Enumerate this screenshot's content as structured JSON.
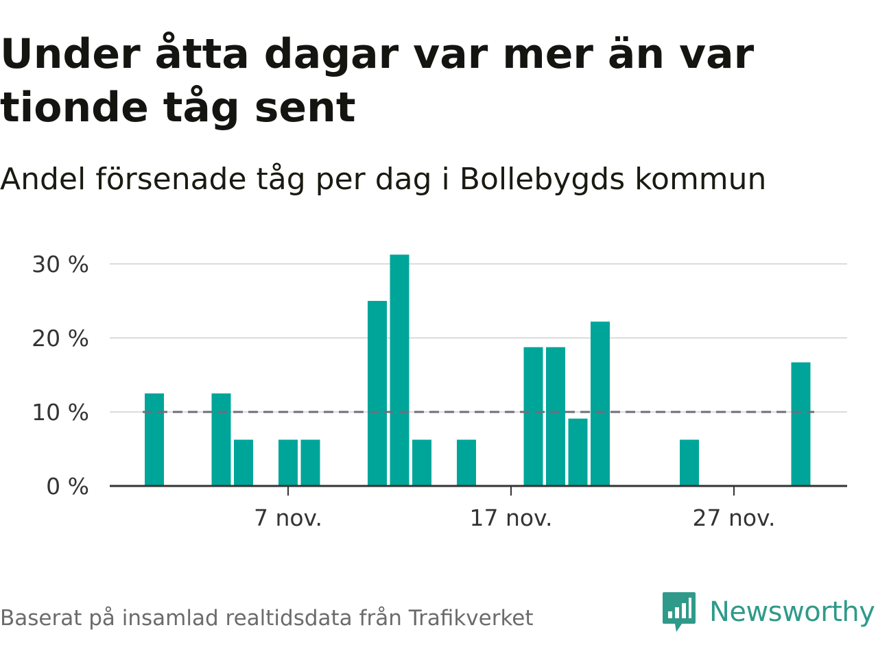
{
  "title": "Under åtta dagar var mer än var tionde tåg sent",
  "subtitle": "Andel försenade tåg per dag i Bollebygds kommun",
  "source": "Baserat på insamlad realtidsdata från Trafikverket",
  "brand": {
    "name": "Newsworthy",
    "icon": "newsworthy-logo-icon",
    "color": "#2f9a8a"
  },
  "chart_data": {
    "type": "bar",
    "x_unit": "day of November",
    "x": [
      1,
      2,
      3,
      4,
      5,
      6,
      7,
      8,
      9,
      10,
      11,
      12,
      13,
      14,
      15,
      16,
      17,
      18,
      19,
      20,
      21,
      22,
      23,
      24,
      25,
      26,
      27,
      28,
      29,
      30
    ],
    "values": [
      12.5,
      0,
      0,
      12.5,
      6.25,
      0,
      6.25,
      6.25,
      0,
      0,
      25,
      31.25,
      6.25,
      0,
      6.25,
      0,
      0,
      18.75,
      18.75,
      9.1,
      22.2,
      0,
      0,
      0,
      6.25,
      0,
      0,
      0,
      0,
      16.7
    ],
    "ylim": [
      0,
      30
    ],
    "yticks": [
      0,
      10,
      20,
      30
    ],
    "ytick_labels": [
      "0 %",
      "10 %",
      "20 %",
      "30 %"
    ],
    "xticks": [
      7,
      17,
      27
    ],
    "xtick_labels": [
      "7 nov.",
      "17 nov.",
      "27 nov."
    ],
    "reference_line": {
      "value": 10,
      "style": "dashed",
      "color": "#6e6e78"
    },
    "bar_color": "#00a59a",
    "grid": true,
    "legend": "none"
  }
}
